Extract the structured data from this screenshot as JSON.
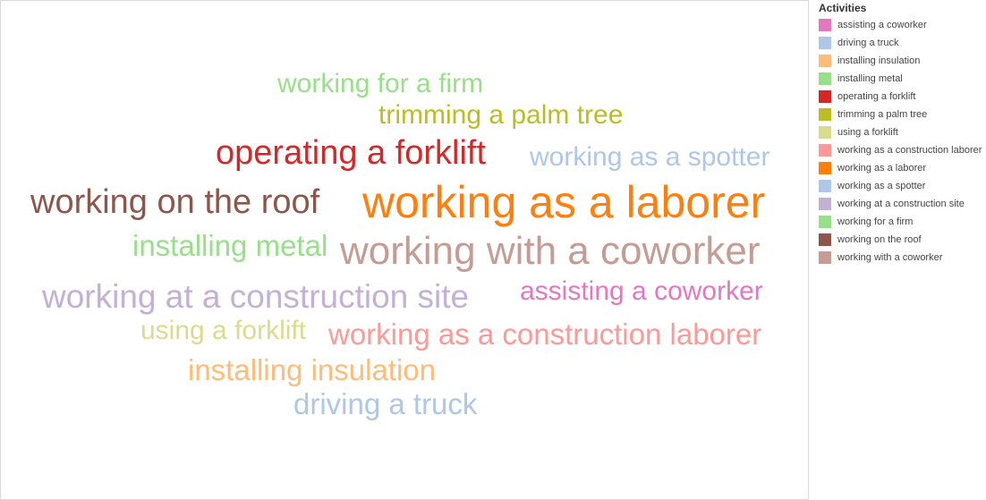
{
  "chart_data": {
    "type": "word-cloud",
    "legend_title": "Activities",
    "legend_position": "right",
    "words": [
      {
        "text": "working for a firm",
        "color": "#98df8a",
        "rank": 4
      },
      {
        "text": "trimming a palm tree",
        "color": "#bcbd22",
        "rank": 4
      },
      {
        "text": "operating a forklift",
        "color": "#d62728",
        "rank": 7
      },
      {
        "text": "working as a spotter",
        "color": "#aec7e8",
        "rank": 4
      },
      {
        "text": "working on the roof",
        "color": "#8c564b",
        "rank": 7
      },
      {
        "text": "working as a laborer",
        "color": "#ff7f0e",
        "rank": 10
      },
      {
        "text": "installing metal",
        "color": "#98df8a",
        "rank": 5
      },
      {
        "text": "working with a coworker",
        "color": "#c49c94",
        "rank": 9
      },
      {
        "text": "working at a construction site",
        "color": "#c5b0d5",
        "rank": 6
      },
      {
        "text": "assisting a coworker",
        "color": "#e377c2",
        "rank": 4
      },
      {
        "text": "using a forklift",
        "color": "#dbdb8d",
        "rank": 4
      },
      {
        "text": "working as a construction laborer",
        "color": "#ff9896",
        "rank": 5
      },
      {
        "text": "installing insulation",
        "color": "#ffbb78",
        "rank": 5
      },
      {
        "text": "driving a truck",
        "color": "#aec7e8",
        "rank": 5
      }
    ],
    "legend": [
      {
        "label": "assisting a coworker",
        "color": "#e377c2"
      },
      {
        "label": "driving a truck",
        "color": "#aec7e8"
      },
      {
        "label": "installing insulation",
        "color": "#ffbb78"
      },
      {
        "label": "installing metal",
        "color": "#98df8a"
      },
      {
        "label": "operating a forklift",
        "color": "#d62728"
      },
      {
        "label": "trimming a palm tree",
        "color": "#bcbd22"
      },
      {
        "label": "using a forklift",
        "color": "#dbdb8d"
      },
      {
        "label": "working as a construction laborer",
        "color": "#ff9896"
      },
      {
        "label": "working as a laborer",
        "color": "#ff7f0e"
      },
      {
        "label": "working as a spotter",
        "color": "#aec7e8"
      },
      {
        "label": "working at a construction site",
        "color": "#c5b0d5"
      },
      {
        "label": "working for a firm",
        "color": "#98df8a"
      },
      {
        "label": "working on the roof",
        "color": "#8c564b"
      },
      {
        "label": "working with a coworker",
        "color": "#c49c94"
      }
    ]
  }
}
